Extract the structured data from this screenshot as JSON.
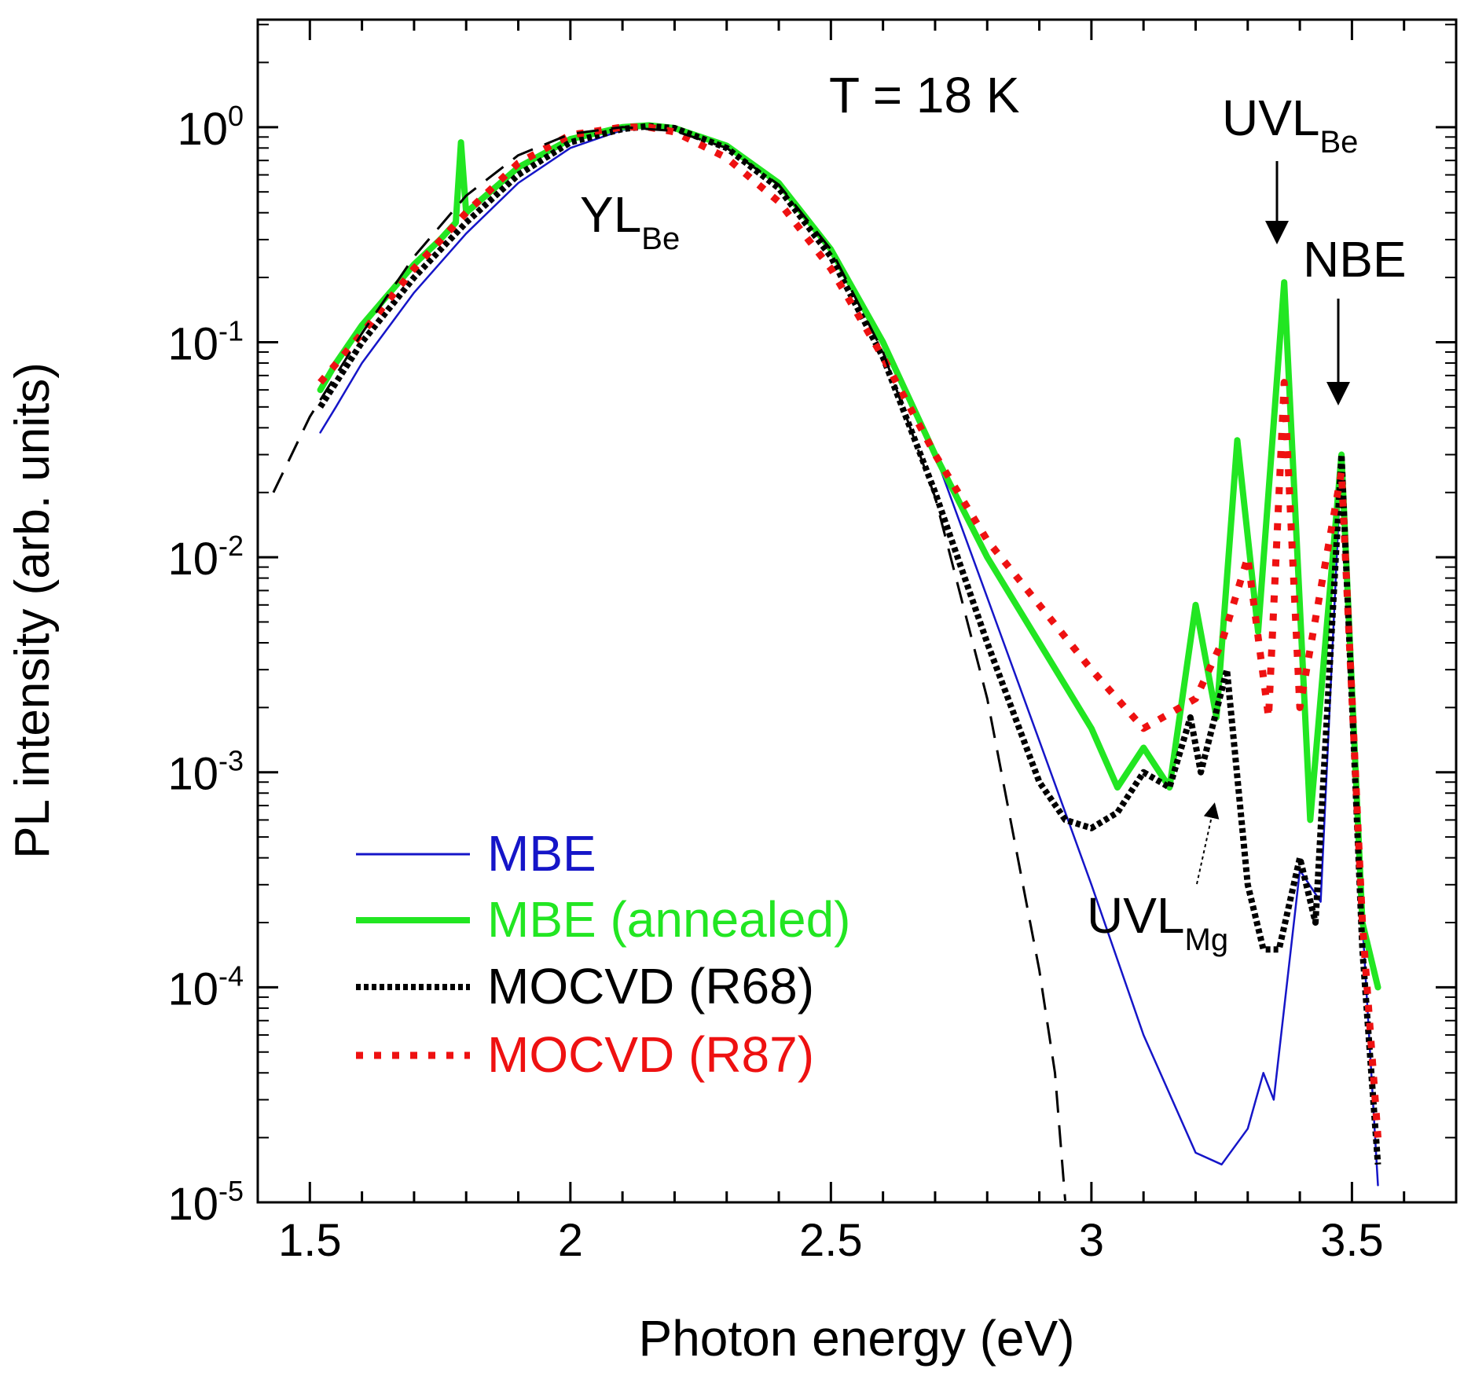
{
  "chart_data": {
    "type": "line",
    "title": "",
    "annotation_temperature": "T = 18 K",
    "xlabel": "Photon energy (eV)",
    "ylabel": "PL intensity (arb. units)",
    "xlim": [
      1.4,
      3.7
    ],
    "ylim_log10": [
      -5,
      0.5
    ],
    "yscale": "log",
    "x_ticks": [
      {
        "value": 1.5,
        "label": "1.5"
      },
      {
        "value": 2.0,
        "label": "2"
      },
      {
        "value": 2.5,
        "label": "2.5"
      },
      {
        "value": 3.0,
        "label": "3"
      },
      {
        "value": 3.5,
        "label": "3.5"
      }
    ],
    "y_ticks": [
      {
        "exp": 0,
        "base": "10",
        "sup": "0"
      },
      {
        "exp": -1,
        "base": "10",
        "sup": "-1"
      },
      {
        "exp": -2,
        "base": "10",
        "sup": "-2"
      },
      {
        "exp": -3,
        "base": "10",
        "sup": "-3"
      },
      {
        "exp": -4,
        "base": "10",
        "sup": "-4"
      },
      {
        "exp": -5,
        "base": "10",
        "sup": "-5"
      }
    ],
    "annotations": [
      {
        "id": "yl-be",
        "main": "YL",
        "sub": "Be"
      },
      {
        "id": "uvl-be",
        "main": "UVL",
        "sub": "Be",
        "arrow_target_x": 3.37
      },
      {
        "id": "nbe",
        "main": "NBE",
        "sub": "",
        "arrow_target_x": 3.48
      },
      {
        "id": "uvl-mg",
        "main": "UVL",
        "sub": "Mg",
        "arrow_target_x": 3.26
      }
    ],
    "series": [
      {
        "name": "MBE",
        "color": "#1515c8",
        "style": "solid-thin",
        "points": [
          [
            1.52,
            0.038
          ],
          [
            1.55,
            0.05
          ],
          [
            1.6,
            0.08
          ],
          [
            1.7,
            0.17
          ],
          [
            1.8,
            0.32
          ],
          [
            1.9,
            0.55
          ],
          [
            2.0,
            0.8
          ],
          [
            2.1,
            0.97
          ],
          [
            2.15,
            1.0
          ],
          [
            2.2,
            0.98
          ],
          [
            2.3,
            0.82
          ],
          [
            2.4,
            0.55
          ],
          [
            2.5,
            0.27
          ],
          [
            2.6,
            0.1
          ],
          [
            2.7,
            0.03
          ],
          [
            2.8,
            0.0065
          ],
          [
            2.9,
            0.0014
          ],
          [
            3.0,
            0.0003
          ],
          [
            3.1,
            6e-05
          ],
          [
            3.2,
            1.7e-05
          ],
          [
            3.25,
            1.5e-05
          ],
          [
            3.3,
            2.2e-05
          ],
          [
            3.33,
            4e-05
          ],
          [
            3.35,
            3e-05
          ],
          [
            3.4,
            0.00035
          ],
          [
            3.44,
            0.00025
          ],
          [
            3.48,
            0.03
          ],
          [
            3.52,
            0.0002
          ],
          [
            3.55,
            1.2e-05
          ]
        ]
      },
      {
        "name": "MBE (annealed)",
        "color": "#22e622",
        "style": "solid-thick",
        "points": [
          [
            1.52,
            0.06
          ],
          [
            1.55,
            0.08
          ],
          [
            1.6,
            0.12
          ],
          [
            1.7,
            0.23
          ],
          [
            1.75,
            0.3
          ],
          [
            1.78,
            0.36
          ],
          [
            1.79,
            0.85
          ],
          [
            1.8,
            0.4
          ],
          [
            1.9,
            0.65
          ],
          [
            2.0,
            0.88
          ],
          [
            2.1,
            1.0
          ],
          [
            2.15,
            1.02
          ],
          [
            2.2,
            0.99
          ],
          [
            2.3,
            0.82
          ],
          [
            2.4,
            0.55
          ],
          [
            2.5,
            0.27
          ],
          [
            2.6,
            0.1
          ],
          [
            2.7,
            0.03
          ],
          [
            2.8,
            0.01
          ],
          [
            2.9,
            0.004
          ],
          [
            3.0,
            0.0016
          ],
          [
            3.05,
            0.00085
          ],
          [
            3.1,
            0.0013
          ],
          [
            3.15,
            0.00085
          ],
          [
            3.2,
            0.006
          ],
          [
            3.24,
            0.0018
          ],
          [
            3.28,
            0.035
          ],
          [
            3.32,
            0.0045
          ],
          [
            3.37,
            0.19
          ],
          [
            3.42,
            0.0006
          ],
          [
            3.48,
            0.03
          ],
          [
            3.52,
            0.0002
          ],
          [
            3.55,
            0.0001
          ]
        ]
      },
      {
        "name": "MOCVD (R68)",
        "color": "#000000",
        "style": "dense-dash",
        "points": [
          [
            1.52,
            0.05
          ],
          [
            1.6,
            0.1
          ],
          [
            1.7,
            0.2
          ],
          [
            1.8,
            0.36
          ],
          [
            1.9,
            0.6
          ],
          [
            2.0,
            0.85
          ],
          [
            2.1,
            0.98
          ],
          [
            2.15,
            1.01
          ],
          [
            2.2,
            0.99
          ],
          [
            2.3,
            0.8
          ],
          [
            2.4,
            0.52
          ],
          [
            2.5,
            0.25
          ],
          [
            2.6,
            0.085
          ],
          [
            2.7,
            0.02
          ],
          [
            2.8,
            0.004
          ],
          [
            2.9,
            0.0009
          ],
          [
            2.95,
            0.0006
          ],
          [
            3.0,
            0.00055
          ],
          [
            3.05,
            0.00065
          ],
          [
            3.1,
            0.001
          ],
          [
            3.15,
            0.00085
          ],
          [
            3.19,
            0.0018
          ],
          [
            3.21,
            0.001
          ],
          [
            3.26,
            0.003
          ],
          [
            3.3,
            0.0003
          ],
          [
            3.33,
            0.00015
          ],
          [
            3.36,
            0.00015
          ],
          [
            3.4,
            0.0004
          ],
          [
            3.43,
            0.0002
          ],
          [
            3.48,
            0.03
          ],
          [
            3.52,
            0.00015
          ],
          [
            3.55,
            1.5e-05
          ]
        ]
      },
      {
        "name": "MOCVD (R87)",
        "color": "#ee1111",
        "style": "sparse-dot",
        "points": [
          [
            1.52,
            0.065
          ],
          [
            1.6,
            0.11
          ],
          [
            1.7,
            0.22
          ],
          [
            1.8,
            0.4
          ],
          [
            1.9,
            0.68
          ],
          [
            2.0,
            0.92
          ],
          [
            2.1,
            1.0
          ],
          [
            2.15,
            1.0
          ],
          [
            2.2,
            0.95
          ],
          [
            2.3,
            0.72
          ],
          [
            2.4,
            0.45
          ],
          [
            2.5,
            0.22
          ],
          [
            2.6,
            0.085
          ],
          [
            2.7,
            0.03
          ],
          [
            2.8,
            0.012
          ],
          [
            2.9,
            0.006
          ],
          [
            3.0,
            0.003
          ],
          [
            3.1,
            0.0016
          ],
          [
            3.2,
            0.0022
          ],
          [
            3.25,
            0.004
          ],
          [
            3.3,
            0.01
          ],
          [
            3.34,
            0.0018
          ],
          [
            3.37,
            0.065
          ],
          [
            3.4,
            0.002
          ],
          [
            3.48,
            0.025
          ],
          [
            3.52,
            0.0002
          ],
          [
            3.55,
            2e-05
          ]
        ]
      },
      {
        "name": "",
        "color": "#000000",
        "style": "long-dash-fit",
        "points": [
          [
            1.43,
            0.02
          ],
          [
            1.5,
            0.045
          ],
          [
            1.6,
            0.11
          ],
          [
            1.7,
            0.25
          ],
          [
            1.8,
            0.48
          ],
          [
            1.9,
            0.74
          ],
          [
            2.0,
            0.93
          ],
          [
            2.1,
            1.0
          ],
          [
            2.2,
            0.96
          ],
          [
            2.3,
            0.8
          ],
          [
            2.4,
            0.54
          ],
          [
            2.5,
            0.27
          ],
          [
            2.6,
            0.09
          ],
          [
            2.7,
            0.019
          ],
          [
            2.8,
            0.0022
          ],
          [
            2.9,
            0.00012
          ],
          [
            2.93,
            4e-05
          ],
          [
            2.95,
            1e-05
          ]
        ]
      }
    ]
  }
}
